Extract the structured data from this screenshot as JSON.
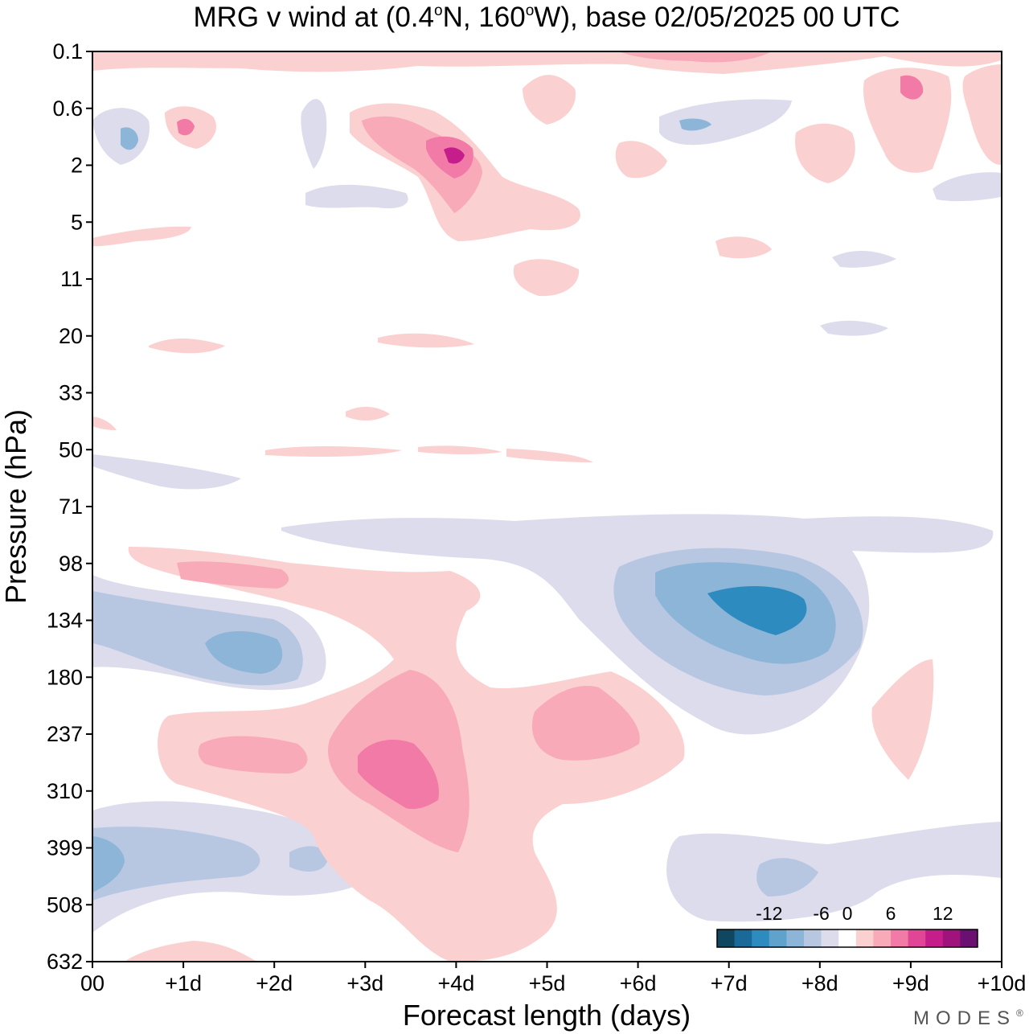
{
  "chart_data": {
    "type": "heatmap",
    "title_parts": [
      "MRG v wind at (0.4",
      "o",
      "N, 160",
      "o",
      "W),  base 02/05/2025  00 UTC"
    ],
    "xlabel": "Forecast length (days)",
    "ylabel": "Pressure (hPa)",
    "x_ticks": [
      "00",
      "+1d",
      "+2d",
      "+3d",
      "+4d",
      "+5d",
      "+6d",
      "+7d",
      "+8d",
      "+9d",
      "+10d"
    ],
    "x_range": [
      0,
      10
    ],
    "y_ticks": [
      "0.1",
      "0.6",
      "2",
      "5",
      "11",
      "20",
      "33",
      "50",
      "71",
      "98",
      "134",
      "180",
      "237",
      "310",
      "399",
      "508",
      "632"
    ],
    "y_scale": "categorical (nonlinear pressure)",
    "colorbar": {
      "labels": [
        "-12",
        "-6",
        "0",
        "6",
        "12"
      ],
      "levels": [
        -16,
        -14,
        -12,
        -10,
        -8,
        -6,
        -4,
        -2,
        2,
        4,
        6,
        8,
        10,
        12,
        14,
        16
      ],
      "colors": [
        "#0f4761",
        "#1a6a99",
        "#2e8bc0",
        "#5fa2cc",
        "#8db5d8",
        "#b7c7e2",
        "#dcdcec",
        "#ffffff",
        "#fbd0d0",
        "#f8aab8",
        "#f27aa6",
        "#e04596",
        "#c51e8a",
        "#a0127c",
        "#6a1070"
      ]
    },
    "features": [
      {
        "name": "negative-core-lower",
        "x_day": 0.3,
        "pressure_hPa": 399,
        "value_ms": -6
      },
      {
        "name": "negative-core-upper-trop",
        "x_day": 7.5,
        "pressure_hPa": 134,
        "value_ms": -8
      },
      {
        "name": "negative-band",
        "x_day": 1.7,
        "pressure_hPa": 150,
        "value_ms": -5
      },
      {
        "name": "positive-core",
        "x_day": 3.5,
        "pressure_hPa": 280,
        "value_ms": 7
      },
      {
        "name": "positive-band",
        "x_day": 5.4,
        "pressure_hPa": 237,
        "value_ms": 4
      },
      {
        "name": "strat-positive-core",
        "x_day": 4.0,
        "pressure_hPa": 1.5,
        "value_ms": 10
      }
    ]
  },
  "brand": "MODES",
  "brand_mark": "®"
}
